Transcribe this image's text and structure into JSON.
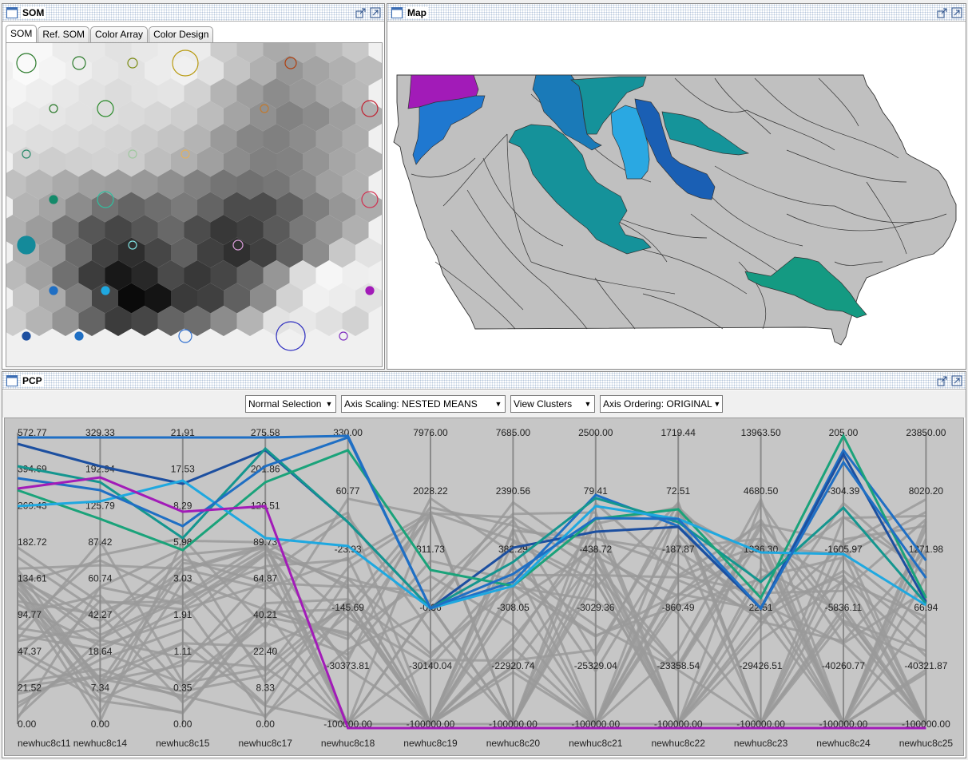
{
  "som": {
    "title": "SOM",
    "tabs": [
      "SOM",
      "Ref. SOM",
      "Color Array",
      "Color Design"
    ],
    "active_tab": 0
  },
  "map": {
    "title": "Map"
  },
  "pcp": {
    "title": "PCP",
    "toolbar": {
      "selection": "Normal Selection",
      "axis_scaling": "Axis Scaling: NESTED MEANS",
      "view": "View Clusters",
      "axis_ordering": "Axis Ordering: ORIGINAL"
    },
    "axes": [
      {
        "name": "newhuc8c11",
        "ticks": [
          "572.77",
          "394.69",
          "269.43",
          "182.72",
          "134.61",
          "94.77",
          "47.37",
          "21.52",
          "0.00"
        ]
      },
      {
        "name": "newhuc8c14",
        "ticks": [
          "329.33",
          "192.94",
          "125.79",
          "87.42",
          "60.74",
          "42.27",
          "18.64",
          "7.34",
          "0.00"
        ]
      },
      {
        "name": "newhuc8c15",
        "ticks": [
          "21.91",
          "17.53",
          "8.29",
          "5.98",
          "3.03",
          "1.91",
          "1.11",
          "0.35",
          "0.00"
        ]
      },
      {
        "name": "newhuc8c17",
        "ticks": [
          "275.58",
          "201.86",
          "120.51",
          "89.73",
          "64.87",
          "40.21",
          "22.40",
          "8.33",
          "0.00"
        ]
      },
      {
        "name": "newhuc8c18",
        "ticks": [
          "330.00",
          "60.77",
          "-23.93",
          "-145.69",
          "-30373.81",
          "-100000.00"
        ]
      },
      {
        "name": "newhuc8c19",
        "ticks": [
          "7976.00",
          "2028.22",
          "311.73",
          "-0.36",
          "-30140.04",
          "-100000.00"
        ]
      },
      {
        "name": "newhuc8c20",
        "ticks": [
          "7685.00",
          "2390.56",
          "382.29",
          "-308.05",
          "-22920.74",
          "-100000.00"
        ]
      },
      {
        "name": "newhuc8c21",
        "ticks": [
          "2500.00",
          "79.41",
          "-438.72",
          "-3029.36",
          "-25329.04",
          "-100000.00"
        ]
      },
      {
        "name": "newhuc8c22",
        "ticks": [
          "1719.44",
          "72.51",
          "-187.87",
          "-860.49",
          "-23358.54",
          "-100000.00"
        ]
      },
      {
        "name": "newhuc8c23",
        "ticks": [
          "13963.50",
          "4680.50",
          "1336.30",
          "22.51",
          "-29426.51",
          "-100000.00"
        ]
      },
      {
        "name": "newhuc8c24",
        "ticks": [
          "205.00",
          "-304.39",
          "-1605.97",
          "-5836.11",
          "-40260.77",
          "-100000.00"
        ]
      },
      {
        "name": "newhuc8c25",
        "ticks": [
          "23850.00",
          "8020.20",
          "1271.98",
          "66.94",
          "-40321.87",
          "-100000.00"
        ]
      }
    ]
  },
  "colors": {
    "selected_blue": "#1f6fc4",
    "selected_navy": "#1c4fa0",
    "selected_sky": "#1fa8e0",
    "selected_teal": "#14968f",
    "selected_green": "#1aa37a",
    "selected_purple": "#a21bb8",
    "unselected": "#9a9a9a"
  }
}
